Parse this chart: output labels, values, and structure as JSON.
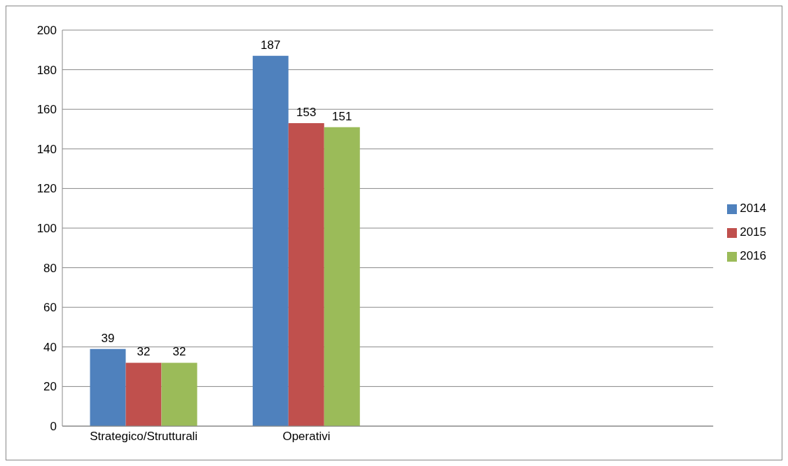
{
  "chart_data": {
    "type": "bar",
    "categories": [
      "Strategico/Strutturali",
      "Operativi",
      null,
      null
    ],
    "series": [
      {
        "name": "2014",
        "color": "#4f81bd",
        "values": [
          39,
          187,
          null,
          null
        ]
      },
      {
        "name": "2015",
        "color": "#c0504d",
        "values": [
          32,
          153,
          null,
          null
        ]
      },
      {
        "name": "2016",
        "color": "#9bbb59",
        "values": [
          32,
          151,
          null,
          null
        ]
      }
    ],
    "ylim": [
      0,
      200
    ],
    "yticks": [
      0,
      20,
      40,
      60,
      80,
      100,
      120,
      140,
      160,
      180,
      200
    ],
    "grid": "y",
    "legend": "right",
    "data_labels": true
  }
}
